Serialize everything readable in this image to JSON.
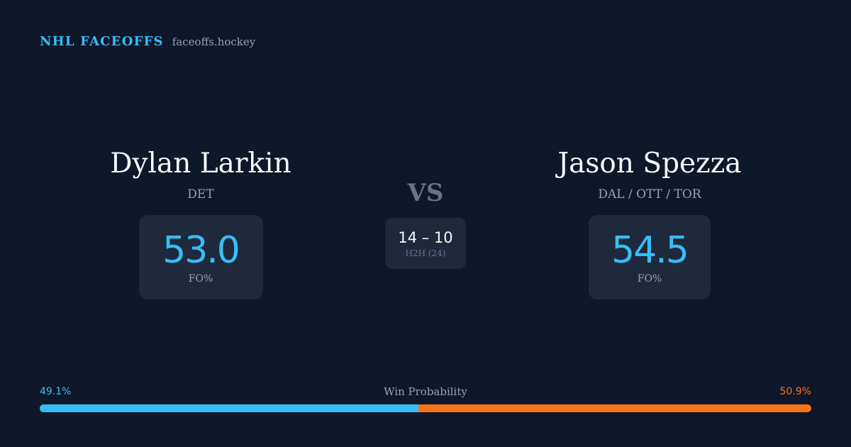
{
  "brand": {
    "name": "NHL FACEOFFS",
    "url": "faceoffs.hockey"
  },
  "player1": {
    "name": "Dylan Larkin",
    "team": "DET",
    "stat_value": "53.0",
    "stat_label": "FO%"
  },
  "vs_label": "VS",
  "h2h": {
    "score": "14 – 10",
    "label": "H2H (24)"
  },
  "player2": {
    "name": "Jason Spezza",
    "team": "DAL / OTT / TOR",
    "stat_value": "54.5",
    "stat_label": "FO%"
  },
  "win_probability": {
    "title": "Win Probability",
    "left_label": "49.1%",
    "right_label": "50.9%",
    "left_value": 49.1,
    "right_value": 50.9,
    "left_color": "#38bdf8",
    "right_color": "#f97316"
  },
  "colors": {
    "background": "#0f172a",
    "card": "#1e293b",
    "accent": "#38bdf8",
    "muted": "#94a3b8"
  }
}
